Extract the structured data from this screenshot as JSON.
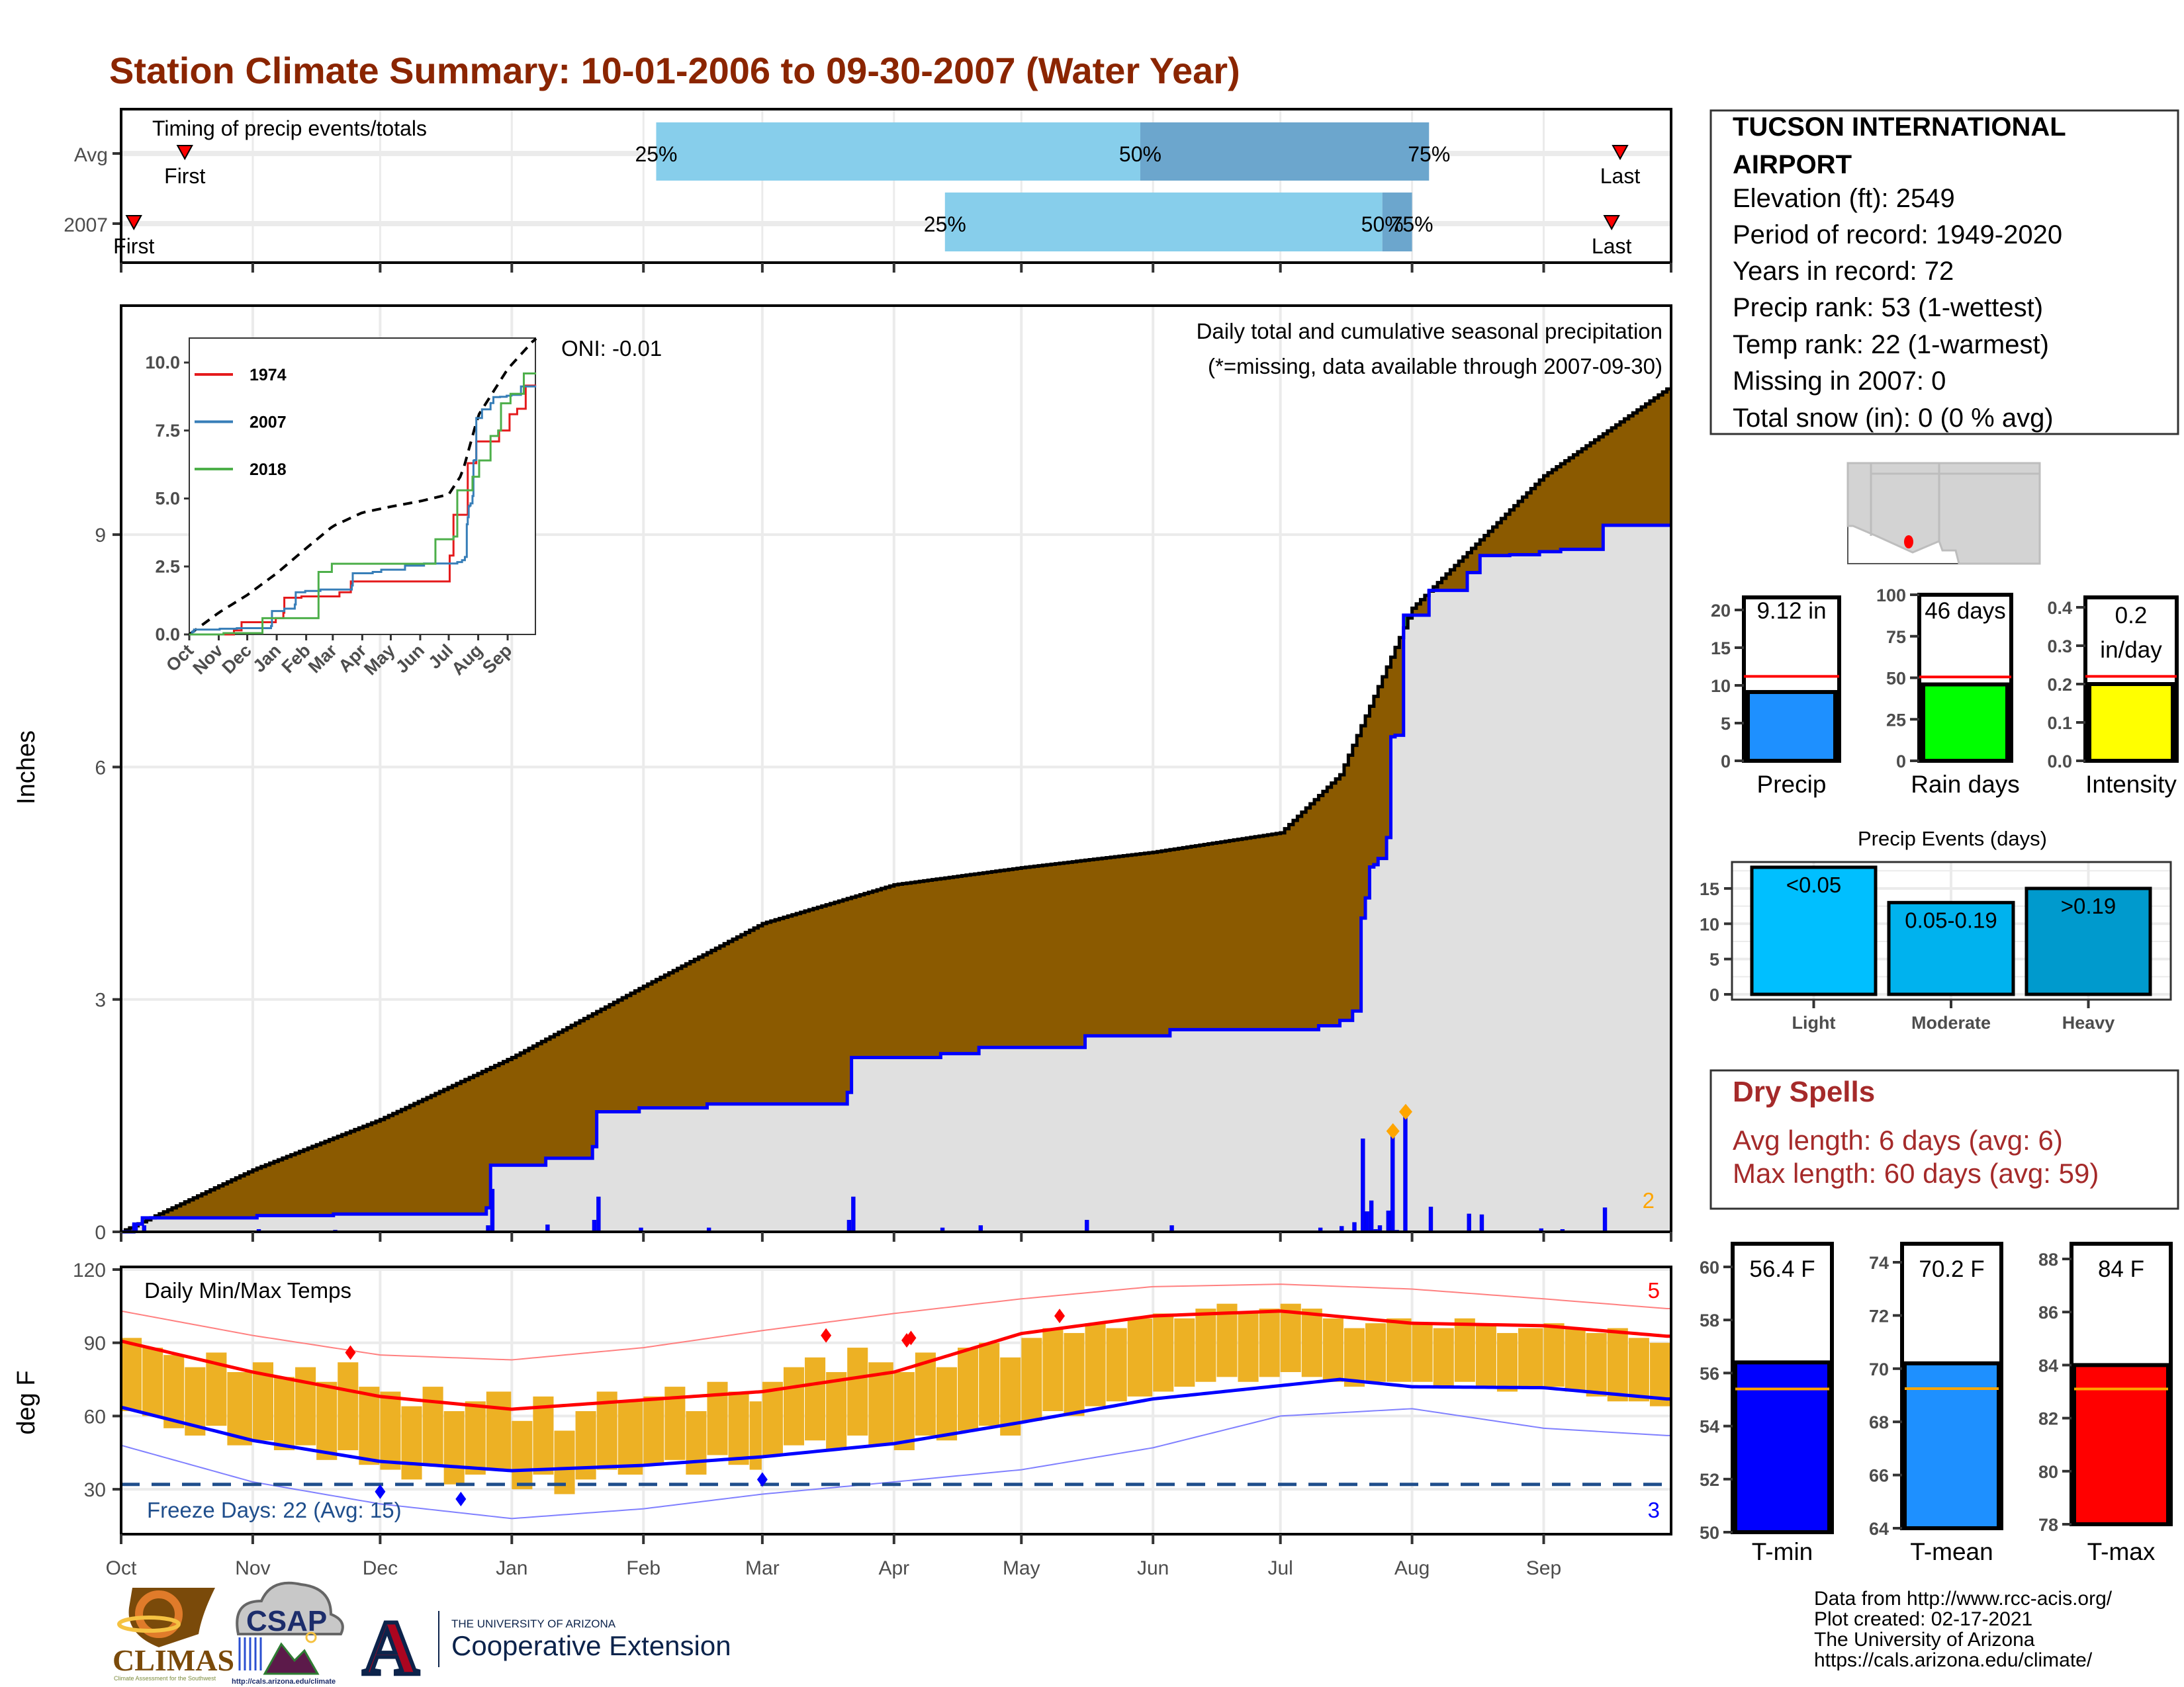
{
  "title": "Station Climate Summary: 10-01-2006 to 09-30-2007 (Water Year)",
  "colors": {
    "title": "#8B2500",
    "avg_fill": "#8B5A00",
    "obs_fill": "#E0E0E0",
    "surplus_fill": "#228B22",
    "obs_line": "#0000FF",
    "timing_light": "#87CEEB",
    "timing_dark": "#6CA6CD",
    "temp_bar": "#EDB124",
    "normal_max": "#FF0000",
    "normal_min": "#0000FF",
    "record_max": "#FF8080",
    "record_min": "#8080FF",
    "freeze": "#1F4E8C",
    "precip": "#1E90FF",
    "rain_days": "#00FF00",
    "intensity": "#FFFF00",
    "tmin": "#0000FF",
    "tmean": "#1E90FF",
    "tmax": "#FF0000",
    "events": [
      "#00BFFF",
      "#00B2EE",
      "#009ACD"
    ],
    "dry_spells": "#A52A2A",
    "avg_line": "#FF0000",
    "temp_avg_line": "#FFA500"
  },
  "station": {
    "name_line1": "TUCSON INTERNATIONAL",
    "name_line2": "AIRPORT",
    "elevation": "Elevation (ft): 2549",
    "period": "Period of record: 1949-2020",
    "years": "Years in record: 72",
    "precip_rank": "Precip rank: 53 (1-wettest)",
    "temp_rank": "Temp rank: 22 (1-warmest)",
    "missing": "Missing in 2007: 0",
    "snow": "Total snow (in): 0 (0 % avg)"
  },
  "dry_spells": {
    "title": "Dry Spells",
    "avg": "Avg length: 6 days (avg: 6)",
    "max": "Max length: 60 days (avg: 59)"
  },
  "footer": {
    "line1": "Data from http://www.rcc-acis.org/",
    "line2": "Plot created: 02-17-2021",
    "line3": "The University of Arizona",
    "line4": "https://cals.arizona.edu/climate/"
  },
  "logos": {
    "climas": "CLIMAS",
    "climas_sub": "Climate Assessment for the Southwest",
    "csap": "CSAP",
    "csap_url": "http://cals.arizona.edu/climate",
    "ua_small": "THE UNIVERSITY OF ARIZONA",
    "ua_big": "Cooperative Extension"
  },
  "months": [
    "Oct",
    "Nov",
    "Dec",
    "Jan",
    "Feb",
    "Mar",
    "Apr",
    "May",
    "Jun",
    "Jul",
    "Aug",
    "Sep"
  ],
  "month_starts": [
    "2006-10-01",
    "2006-11-01",
    "2006-12-01",
    "2007-01-01",
    "2007-02-01",
    "2007-03-01",
    "2007-04-01",
    "2007-05-01",
    "2007-06-01",
    "2007-07-01",
    "2007-08-01",
    "2007-09-01"
  ],
  "chart_data": [
    {
      "id": "timing",
      "type": "bar",
      "title": "Timing of precip events/totals",
      "rows": [
        {
          "name": "Avg",
          "first": "2006-10-16",
          "p25": "2007-02-04",
          "p50": "2007-05-29",
          "p75": "2007-08-05",
          "last": "2007-09-19"
        },
        {
          "name": "2007",
          "first": "2006-10-04",
          "p25": "2007-04-13",
          "p50": "2007-07-25",
          "p75": "2007-08-01",
          "last": "2007-09-17"
        }
      ],
      "labels": {
        "first": "First",
        "last": "Last",
        "p25": "25%",
        "p50": "50%",
        "p75": "75%"
      }
    },
    {
      "id": "precip",
      "type": "area",
      "title": "Daily total and cumulative seasonal precipitation",
      "subtitle": "(*=missing, data available through 2007-09-30)",
      "ylabel": "Inches",
      "ylim": [
        0,
        12
      ],
      "yticks": [
        0,
        3,
        6,
        9
      ],
      "oni": "ONI: -0.01",
      "record_count": "2",
      "avg_cumulative": [
        [
          "2006-10-01",
          0
        ],
        [
          "2006-11-01",
          0.8
        ],
        [
          "2006-12-01",
          1.45
        ],
        [
          "2007-01-01",
          2.25
        ],
        [
          "2007-02-01",
          3.17
        ],
        [
          "2007-03-01",
          3.98
        ],
        [
          "2007-04-01",
          4.48
        ],
        [
          "2007-05-01",
          4.7
        ],
        [
          "2007-06-01",
          4.9
        ],
        [
          "2007-07-01",
          5.15
        ],
        [
          "2007-07-15",
          5.9
        ],
        [
          "2007-08-01",
          8.05
        ],
        [
          "2007-09-01",
          9.76
        ],
        [
          "2007-09-30",
          10.88
        ]
      ],
      "daily_2007": [
        [
          "2006-10-04",
          0.1
        ],
        [
          "2006-10-06",
          0.08
        ],
        [
          "2006-11-02",
          0.03
        ],
        [
          "2006-11-20",
          0.02
        ],
        [
          "2006-12-26",
          0.08
        ],
        [
          "2006-12-27",
          0.55
        ],
        [
          "2007-01-09",
          0.09
        ],
        [
          "2007-01-20",
          0.15
        ],
        [
          "2007-01-21",
          0.45
        ],
        [
          "2007-01-31",
          0.05
        ],
        [
          "2007-02-16",
          0.05
        ],
        [
          "2007-03-21",
          0.15
        ],
        [
          "2007-03-22",
          0.45
        ],
        [
          "2007-04-12",
          0.05
        ],
        [
          "2007-04-21",
          0.08
        ],
        [
          "2007-05-16",
          0.15
        ],
        [
          "2007-06-05",
          0.08
        ],
        [
          "2007-07-10",
          0.05
        ],
        [
          "2007-07-15",
          0.07
        ],
        [
          "2007-07-18",
          0.12
        ],
        [
          "2007-07-20",
          1.2
        ],
        [
          "2007-07-21",
          0.26
        ],
        [
          "2007-07-22",
          0.4
        ],
        [
          "2007-07-23",
          0.03
        ],
        [
          "2007-07-24",
          0.08
        ],
        [
          "2007-07-26",
          0.27
        ],
        [
          "2007-07-27",
          1.3
        ],
        [
          "2007-07-28",
          0.02
        ],
        [
          "2007-07-30",
          1.55
        ],
        [
          "2007-08-05",
          0.32
        ],
        [
          "2007-08-14",
          0.23
        ],
        [
          "2007-08-17",
          0.22
        ],
        [
          "2007-08-24",
          0.01
        ],
        [
          "2007-08-31",
          0.04
        ],
        [
          "2007-09-05",
          0.03
        ],
        [
          "2007-09-15",
          0.31
        ]
      ],
      "record_days": [
        "2007-07-27",
        "2007-07-30"
      ]
    },
    {
      "id": "inset",
      "type": "line",
      "yticks": [
        "0.0",
        "2.5",
        "5.0",
        "7.5",
        "10.0"
      ],
      "series": [
        {
          "name": "1974",
          "color": "#E41A1C",
          "steps": [
            [
              "2006-11-17",
              0.15
            ],
            [
              "2006-11-25",
              0.45
            ],
            [
              "2006-12-31",
              0.6
            ],
            [
              "2007-01-08",
              0.8
            ],
            [
              "2007-01-09",
              1.35
            ],
            [
              "2007-01-27",
              1.4
            ],
            [
              "2007-03-08",
              1.55
            ],
            [
              "2007-03-20",
              1.95
            ],
            [
              "2007-07-02",
              2.9
            ],
            [
              "2007-07-06",
              4.4
            ],
            [
              "2007-07-21",
              6.3
            ],
            [
              "2007-07-30",
              7.1
            ],
            [
              "2007-08-23",
              7.5
            ],
            [
              "2007-09-03",
              8.1
            ],
            [
              "2007-09-11",
              8.3
            ],
            [
              "2007-09-20",
              9.15
            ]
          ]
        },
        {
          "name": "2007",
          "color": "#377EB8",
          "from": "precip"
        },
        {
          "name": "2018",
          "color": "#4DAF4A",
          "steps": [
            [
              "2006-11-06",
              0.05
            ],
            [
              "2006-12-17",
              0.6
            ],
            [
              "2007-02-14",
              2.3
            ],
            [
              "2007-02-28",
              2.6
            ],
            [
              "2007-06-17",
              3.5
            ],
            [
              "2007-07-06",
              3.6
            ],
            [
              "2007-07-10",
              5.3
            ],
            [
              "2007-07-26",
              5.8
            ],
            [
              "2007-08-02",
              6.4
            ],
            [
              "2007-08-14",
              7.3
            ],
            [
              "2007-08-22",
              7.5
            ],
            [
              "2007-08-25",
              8.5
            ],
            [
              "2007-09-04",
              8.85
            ],
            [
              "2007-09-18",
              9.6
            ]
          ]
        }
      ]
    },
    {
      "id": "temps",
      "type": "bar",
      "title": "Daily Min/Max Temps",
      "ylabel": "deg F",
      "ylim": [
        11.5,
        121
      ],
      "yticks": [
        30,
        60,
        90,
        120
      ],
      "freeze_threshold": 32,
      "freeze_text": "Freeze Days: 22 (Avg: 15)",
      "record_high_count": "5",
      "record_low_count": "3",
      "period_days": [
        1,
        6,
        11,
        16,
        21,
        26
      ],
      "tmax": [
        [
          92,
          88,
          85,
          80,
          86,
          78
        ],
        [
          82,
          76,
          80,
          74,
          82,
          72
        ],
        [
          70,
          64,
          72,
          62,
          66,
          70
        ],
        [
          58,
          68,
          54,
          62,
          70,
          66
        ],
        [
          68,
          72,
          62,
          74,
          70,
          66
        ],
        [
          74,
          80,
          84,
          78,
          88,
          82
        ],
        [
          78,
          86,
          80,
          88,
          90,
          84
        ],
        [
          92,
          96,
          94,
          98,
          96,
          100
        ],
        [
          102,
          100,
          104,
          106,
          102,
          104
        ],
        [
          106,
          104,
          100,
          96,
          98,
          100
        ],
        [
          98,
          96,
          100,
          98,
          94,
          96
        ],
        [
          98,
          96,
          94,
          96,
          92,
          90
        ]
      ],
      "tmin": [
        [
          62,
          60,
          55,
          52,
          56,
          48
        ],
        [
          50,
          46,
          48,
          42,
          46,
          40
        ],
        [
          38,
          34,
          40,
          32,
          36,
          38
        ],
        [
          30,
          36,
          28,
          34,
          38,
          36
        ],
        [
          40,
          42,
          36,
          44,
          40,
          38
        ],
        [
          44,
          48,
          50,
          46,
          52,
          48
        ],
        [
          46,
          52,
          50,
          54,
          56,
          52
        ],
        [
          58,
          62,
          60,
          64,
          66,
          68
        ],
        [
          70,
          72,
          74,
          76,
          74,
          76
        ],
        [
          78,
          76,
          74,
          72,
          74,
          74
        ],
        [
          74,
          72,
          74,
          72,
          70,
          72
        ],
        [
          72,
          70,
          68,
          66,
          66,
          64
        ]
      ],
      "normal_max": [
        [
          "2006-10-01",
          90.7
        ],
        [
          "2006-11-01",
          78
        ],
        [
          "2006-12-01",
          68
        ],
        [
          "2007-01-01",
          62.8
        ],
        [
          "2007-02-01",
          66.6
        ],
        [
          "2007-03-01",
          70
        ],
        [
          "2007-04-01",
          78
        ],
        [
          "2007-05-01",
          93.8
        ],
        [
          "2007-06-01",
          101
        ],
        [
          "2007-07-01",
          103
        ],
        [
          "2007-08-01",
          98
        ],
        [
          "2007-09-01",
          97
        ],
        [
          "2007-09-30",
          92.7
        ]
      ],
      "normal_min": [
        [
          "2006-10-01",
          63.6
        ],
        [
          "2006-11-01",
          50
        ],
        [
          "2006-12-01",
          41.4
        ],
        [
          "2007-01-01",
          37.6
        ],
        [
          "2007-02-01",
          39.8
        ],
        [
          "2007-03-01",
          43.3
        ],
        [
          "2007-04-01",
          48.7
        ],
        [
          "2007-05-01",
          57.4
        ],
        [
          "2007-06-01",
          67
        ],
        [
          "2007-07-15",
          75
        ],
        [
          "2007-08-01",
          72
        ],
        [
          "2007-09-01",
          71.6
        ],
        [
          "2007-09-30",
          67
        ]
      ],
      "record_max": [
        [
          "2006-10-01",
          103
        ],
        [
          "2006-11-01",
          93
        ],
        [
          "2006-12-01",
          85
        ],
        [
          "2007-01-01",
          83
        ],
        [
          "2007-02-01",
          88
        ],
        [
          "2007-03-01",
          95
        ],
        [
          "2007-04-01",
          102
        ],
        [
          "2007-05-01",
          108
        ],
        [
          "2007-06-01",
          113
        ],
        [
          "2007-07-01",
          114
        ],
        [
          "2007-08-01",
          112
        ],
        [
          "2007-09-01",
          108
        ],
        [
          "2007-09-30",
          104
        ]
      ],
      "record_min": [
        [
          "2006-10-01",
          48
        ],
        [
          "2006-11-01",
          33
        ],
        [
          "2006-12-01",
          24
        ],
        [
          "2007-01-01",
          18
        ],
        [
          "2007-02-01",
          22
        ],
        [
          "2007-03-01",
          28
        ],
        [
          "2007-04-01",
          33
        ],
        [
          "2007-05-01",
          38
        ],
        [
          "2007-06-01",
          47
        ],
        [
          "2007-07-01",
          60
        ],
        [
          "2007-08-01",
          63
        ],
        [
          "2007-09-01",
          55
        ],
        [
          "2007-09-30",
          52
        ]
      ],
      "record_highs": [
        [
          "2006-11-24",
          86
        ],
        [
          "2007-03-16",
          93
        ],
        [
          "2007-04-04",
          91
        ],
        [
          "2007-04-05",
          92
        ],
        [
          "2007-05-10",
          101
        ]
      ],
      "record_lows": [
        [
          "2006-12-01",
          29
        ],
        [
          "2006-12-20",
          26
        ],
        [
          "2007-03-01",
          34
        ]
      ]
    },
    {
      "id": "season_precip",
      "type": "bar",
      "gauges": [
        {
          "name": "Precip",
          "value": 9.12,
          "avg": 11.2,
          "text": "9.12 in",
          "ticks": [
            "0",
            "5",
            "10",
            "15",
            "20"
          ]
        },
        {
          "name": "Rain days",
          "value": 46,
          "avg": 50.5,
          "text": "46 days",
          "ticks": [
            "0",
            "25",
            "50",
            "75",
            "100"
          ]
        },
        {
          "name": "Intensity",
          "value": 0.2,
          "avg": 0.22,
          "text": "0.2",
          "text2": "in/day",
          "ticks": [
            "0.0",
            "0.1",
            "0.2",
            "0.3",
            "0.4"
          ]
        }
      ]
    },
    {
      "id": "precip_events",
      "type": "bar",
      "title": "Precip Events (days)",
      "categories": [
        "Light",
        "Moderate",
        "Heavy"
      ],
      "bar_labels": [
        "<0.05",
        "0.05-0.19",
        ">0.19"
      ],
      "values": [
        18,
        13,
        15
      ],
      "yticks": [
        "0",
        "5",
        "10",
        "15"
      ]
    },
    {
      "id": "season_temps",
      "type": "bar",
      "gauges": [
        {
          "name": "T-min",
          "value": 56.4,
          "avg": 55.4,
          "text": "56.4 F",
          "ticks": [
            "50",
            "52",
            "54",
            "56",
            "58",
            "60"
          ]
        },
        {
          "name": "T-mean",
          "value": 70.2,
          "avg": 69.25,
          "text": "70.2 F",
          "ticks": [
            "64",
            "66",
            "68",
            "70",
            "72",
            "74"
          ]
        },
        {
          "name": "T-max",
          "value": 84,
          "avg": 83.1,
          "text": "84 F",
          "ticks": [
            "78",
            "80",
            "82",
            "84",
            "86",
            "88"
          ]
        }
      ]
    }
  ]
}
